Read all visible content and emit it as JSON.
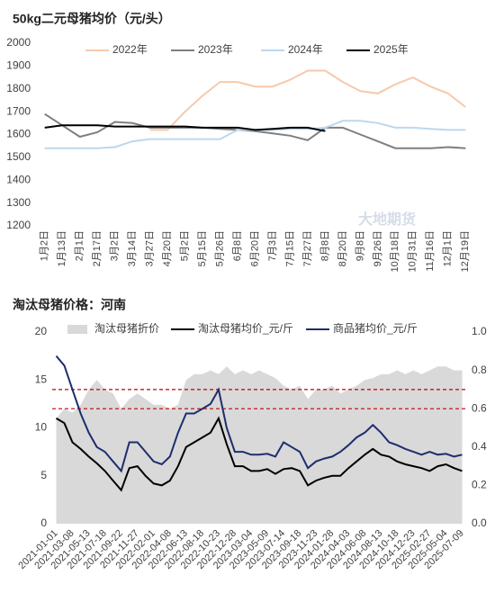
{
  "chart_data": [
    {
      "type": "line",
      "title": "50kg二元母猪均价（元/头）",
      "watermark": "大地期货",
      "categories": [
        "1月2日",
        "1月13日",
        "2月1日",
        "2月17日",
        "3月2日",
        "3月14日",
        "3月27日",
        "4月20日",
        "5月2日",
        "5月15日",
        "5月26日",
        "6月8日",
        "6月20日",
        "7月3日",
        "7月15日",
        "7月27日",
        "8月8日",
        "8月20日",
        "9月8日",
        "9月26日",
        "10月18日",
        "10月31日",
        "11月16日",
        "12月1日",
        "12月19日"
      ],
      "series": [
        {
          "name": "2022年",
          "color": "#f6c9ac",
          "values": [
            null,
            null,
            null,
            null,
            null,
            null,
            1620,
            1620,
            1700,
            1770,
            1830,
            1830,
            1810,
            1810,
            1840,
            1880,
            1880,
            1830,
            1790,
            1780,
            1820,
            1850,
            1810,
            1780,
            1720
          ]
        },
        {
          "name": "2023年",
          "color": "#7f7f7f",
          "values": [
            1690,
            1640,
            1590,
            1610,
            1655,
            1650,
            1630,
            1630,
            1630,
            1630,
            1625,
            1620,
            1615,
            1605,
            1595,
            1575,
            1630,
            1630,
            1600,
            1570,
            1540,
            1540,
            1540,
            1545,
            1540
          ]
        },
        {
          "name": "2024年",
          "color": "#bdd7ee",
          "values": [
            1540,
            1540,
            1540,
            1540,
            1545,
            1570,
            1580,
            1580,
            1580,
            1580,
            1580,
            1620,
            1620,
            1620,
            1625,
            1625,
            1630,
            1660,
            1660,
            1650,
            1630,
            1630,
            1625,
            1620,
            1620
          ]
        },
        {
          "name": "2025年",
          "color": "#000000",
          "values": [
            1630,
            1640,
            1640,
            1640,
            1635,
            1635,
            1635,
            1635,
            1635,
            1630,
            1630,
            1630,
            1620,
            1625,
            1630,
            1630,
            1615,
            null,
            null,
            null,
            null,
            null,
            null,
            null,
            null
          ]
        }
      ],
      "ylim": [
        1200,
        2000
      ],
      "yticks": [
        1200,
        1300,
        1400,
        1500,
        1600,
        1700,
        1800,
        1900,
        2000
      ],
      "grid": false
    },
    {
      "type": "line",
      "title": "淘汰母猪价格：河南",
      "watermark": "大地期货",
      "categories": [
        "2021-01-01",
        null,
        "2021-03-08",
        null,
        "2021-05-13",
        null,
        "2021-07-18",
        null,
        "2021-09-22",
        null,
        "2021-11-27",
        null,
        "2022-02-01",
        null,
        "2022-04-08",
        null,
        "2022-06-13",
        null,
        "2022-08-18",
        null,
        "2022-10-23",
        null,
        "2022-12-28",
        null,
        "2023-03-04",
        null,
        "2023-05-09",
        null,
        "2023-07-14",
        null,
        "2023-09-18",
        null,
        "2023-11-23",
        null,
        "2024-01-28",
        null,
        "2024-04-03",
        null,
        "2024-06-08",
        null,
        "2024-08-13",
        null,
        "2024-10-18",
        null,
        "2024-12-23",
        null,
        "2025-02-27",
        null,
        "2025-05-04",
        null,
        "2025-07-09"
      ],
      "series": [
        {
          "name": "淘汰母猪折价",
          "kind": "area",
          "axis": "y2",
          "color": "#d9d9d9",
          "values": [
            0.55,
            0.6,
            0.58,
            0.62,
            0.7,
            0.75,
            0.7,
            0.68,
            0.6,
            0.65,
            0.68,
            0.65,
            0.62,
            0.62,
            0.6,
            0.62,
            0.75,
            0.78,
            0.78,
            0.8,
            0.78,
            0.82,
            0.78,
            0.8,
            0.78,
            0.8,
            0.78,
            0.76,
            0.72,
            0.7,
            0.72,
            0.65,
            0.7,
            0.7,
            0.72,
            0.68,
            0.7,
            0.72,
            0.75,
            0.76,
            0.78,
            0.78,
            0.8,
            0.78,
            0.8,
            0.78,
            0.8,
            0.82,
            0.82,
            0.8,
            0.8
          ]
        },
        {
          "name": "淘汰母猪均价_元/斤",
          "color": "#000000",
          "values": [
            11,
            10.5,
            8.5,
            7.8,
            7,
            6.3,
            5.5,
            4.5,
            3.5,
            5.8,
            6,
            5,
            4.2,
            4,
            4.5,
            6,
            8,
            8.5,
            9,
            9.5,
            11,
            8.3,
            6,
            6,
            5.5,
            5.5,
            5.7,
            5.2,
            5.7,
            5.8,
            5.5,
            4,
            4.5,
            4.8,
            5,
            5,
            5.8,
            6.5,
            7.2,
            7.8,
            7.2,
            7,
            6.5,
            6.2,
            6,
            5.8,
            5.5,
            6,
            6.2,
            5.8,
            5.5
          ]
        },
        {
          "name": "商品猪均价_元/斤",
          "color": "#1f2d6e",
          "values": [
            17.5,
            16.5,
            14,
            11.5,
            9.5,
            8,
            7.5,
            6.5,
            5.5,
            8.5,
            8.5,
            7.5,
            6.5,
            6.2,
            7,
            9.5,
            11.5,
            11.5,
            12,
            12.5,
            14,
            10,
            7.5,
            7.5,
            7.2,
            7.2,
            7.3,
            7,
            8.5,
            8,
            7.5,
            5.8,
            6.5,
            6.8,
            7,
            7.5,
            8.2,
            9,
            9.5,
            10.3,
            9.5,
            8.5,
            8.2,
            7.8,
            7.5,
            7.2,
            7.5,
            7.2,
            7.3,
            7,
            7.2
          ]
        }
      ],
      "reference_lines": [
        14,
        12
      ],
      "reference_color": "#c00000",
      "ylim": [
        0,
        20
      ],
      "yticks": [
        0,
        5,
        10,
        15,
        20
      ],
      "y2lim": [
        0,
        1
      ],
      "y2ticks": [
        {
          "value": 0,
          "label": "0.0"
        },
        0.2,
        0.4,
        0.6,
        0.8,
        {
          "value": 1,
          "label": "1.0"
        }
      ],
      "grid": false
    }
  ]
}
